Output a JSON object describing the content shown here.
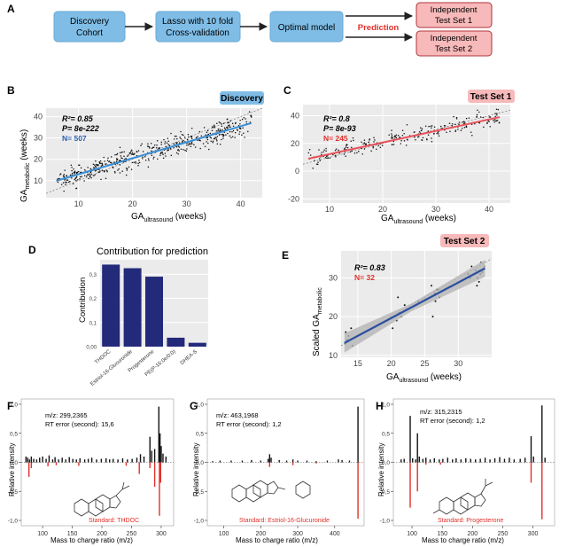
{
  "panels": {
    "A": "A",
    "B": "B",
    "C": "C",
    "D": "D",
    "E": "E",
    "F": "F",
    "G": "G",
    "H": "H"
  },
  "flow": {
    "box1": [
      "Discovery",
      "Cohort"
    ],
    "box2": [
      "Lasso with 10 fold",
      "Cross-validation"
    ],
    "box3": "Optimal model",
    "arrow_label": "Prediction",
    "test1": [
      "Independent",
      "Test Set 1"
    ],
    "test2": [
      "Independent",
      "Test Set 2"
    ]
  },
  "colors": {
    "blue_box": "#7fbde6",
    "red_box": "#f7b9b9",
    "line_blue": "#3a8fd6",
    "line_red": "#e8525a",
    "bar": "#232a7a",
    "spectrum_red": "#e0302a"
  },
  "chart_data": [
    {
      "id": "B",
      "type": "scatter",
      "badge": "Discovery",
      "stats": {
        "r2": "R²= 0.85",
        "p": "P= 8e-222",
        "n": "N= 507"
      },
      "xlabel_main": "GA",
      "xlabel_sub": "ultrasound",
      "xlabel_tail": " (weeks)",
      "ylabel_main": "GA",
      "ylabel_sub": "metabolic",
      "ylabel_tail": " (weeks)",
      "xlim": [
        4,
        44
      ],
      "ylim": [
        2,
        44
      ],
      "xticks": [
        10,
        20,
        30,
        40
      ],
      "yticks": [
        10,
        20,
        30,
        40
      ],
      "fit": {
        "x": [
          6,
          42
        ],
        "y": [
          10,
          37
        ]
      },
      "n_points": 507
    },
    {
      "id": "C",
      "type": "scatter",
      "badge": "Test Set 1",
      "stats": {
        "r2": "R²= 0.8",
        "p": "P= 8e-93",
        "n": "N= 245"
      },
      "xlabel_main": "GA",
      "xlabel_sub": "ultrasound",
      "xlabel_tail": " (weeks)",
      "xlim": [
        5,
        44
      ],
      "ylim": [
        -23,
        48
      ],
      "xticks": [
        10,
        20,
        30,
        40
      ],
      "yticks": [
        -20,
        0,
        20,
        40
      ],
      "fit": {
        "x": [
          6,
          42
        ],
        "y": [
          9,
          39
        ]
      },
      "n_points": 245
    },
    {
      "id": "D",
      "type": "bar",
      "title": "Contribution for prediction",
      "ylabel": "Contribution",
      "categories": [
        "THDOC",
        "Estriol-16-Glucuronide",
        "Progesterone",
        "PE(P-16:0e/0:0)",
        "DHEA-S"
      ],
      "values": [
        0.34,
        0.325,
        0.29,
        0.037,
        0.016
      ],
      "ylim": [
        0,
        0.36
      ],
      "yticks": [
        "0,00",
        "0,1",
        "0,2",
        "0,3"
      ]
    },
    {
      "id": "E",
      "type": "scatter",
      "badge": "Test Set 2",
      "stats": {
        "r2": "R²= 0.83",
        "n": "N= 32"
      },
      "xlabel_main": "GA",
      "xlabel_sub": "ultrasound",
      "xlabel_tail": " (weeks)",
      "ylabel_main": "Scaled GA",
      "ylabel_sub": "metabolic",
      "xlim": [
        12.5,
        35
      ],
      "ylim": [
        9.5,
        37
      ],
      "xticks": [
        15,
        20,
        25,
        30
      ],
      "yticks": [
        10,
        20,
        30
      ],
      "fit": {
        "x": [
          13,
          34
        ],
        "y": [
          13.2,
          32.5
        ]
      },
      "points": [
        [
          13.1,
          13
        ],
        [
          13.4,
          14
        ],
        [
          13.6,
          15
        ],
        [
          13.2,
          16
        ],
        [
          14,
          17
        ],
        [
          20.2,
          17
        ],
        [
          20.8,
          19
        ],
        [
          21.2,
          21
        ],
        [
          21,
          25
        ],
        [
          24,
          24
        ],
        [
          26,
          28
        ],
        [
          26.2,
          20
        ],
        [
          26.5,
          26
        ],
        [
          26.8,
          27
        ],
        [
          26.6,
          24
        ],
        [
          27,
          27
        ],
        [
          27.2,
          25
        ],
        [
          31.8,
          30
        ],
        [
          32,
          33
        ],
        [
          32.3,
          31
        ],
        [
          32.6,
          32
        ],
        [
          32.9,
          30
        ],
        [
          33.1,
          29
        ],
        [
          33.3,
          31
        ],
        [
          33.6,
          31.5
        ],
        [
          33.9,
          33
        ],
        [
          33.4,
          34
        ],
        [
          32.8,
          28
        ],
        [
          21.5,
          20
        ],
        [
          22,
          23
        ],
        [
          14.2,
          12.5
        ],
        [
          31.5,
          31
        ]
      ]
    },
    {
      "id": "F",
      "type": "spectrum",
      "info": [
        "m/z: 299,2365",
        "RT error (second): 15,6"
      ],
      "standard": "Standard: THDOC",
      "ylabel": "Relative intensity",
      "xlabel": "Mass to charge ratio (m/z)",
      "xlim": [
        70,
        315
      ],
      "xticks": [
        100,
        150,
        200,
        250,
        300
      ],
      "yticks": [
        "1,0",
        "0,5",
        "0,0",
        "-0,5",
        "-1,0"
      ],
      "pos": [
        [
          72,
          0.1
        ],
        [
          75,
          0.08
        ],
        [
          78,
          0.05
        ],
        [
          81,
          0.1
        ],
        [
          85,
          0.06
        ],
        [
          90,
          0.05
        ],
        [
          95,
          0.08
        ],
        [
          100,
          0.1
        ],
        [
          106,
          0.06
        ],
        [
          111,
          0.12
        ],
        [
          117,
          0.05
        ],
        [
          121,
          0.09
        ],
        [
          127,
          0.05
        ],
        [
          133,
          0.08
        ],
        [
          139,
          0.05
        ],
        [
          145,
          0.09
        ],
        [
          151,
          0.06
        ],
        [
          157,
          0.05
        ],
        [
          163,
          0.07
        ],
        [
          171,
          0.05
        ],
        [
          177,
          0.06
        ],
        [
          183,
          0.08
        ],
        [
          191,
          0.05
        ],
        [
          199,
          0.06
        ],
        [
          207,
          0.07
        ],
        [
          213,
          0.05
        ],
        [
          219,
          0.06
        ],
        [
          227,
          0.05
        ],
        [
          235,
          0.07
        ],
        [
          243,
          0.05
        ],
        [
          251,
          0.06
        ],
        [
          259,
          0.08
        ],
        [
          265,
          0.14
        ],
        [
          271,
          0.1
        ],
        [
          281,
          0.44
        ],
        [
          284,
          0.2
        ],
        [
          289,
          0.23
        ],
        [
          296,
          0.96
        ],
        [
          298,
          0.5
        ],
        [
          300,
          0.28
        ],
        [
          303,
          0.15
        ],
        [
          308,
          0.1
        ]
      ],
      "neg": [
        [
          77,
          -0.25
        ],
        [
          81,
          -0.1
        ],
        [
          109,
          -0.07
        ],
        [
          123,
          -0.05
        ],
        [
          161,
          -0.06
        ],
        [
          241,
          -0.06
        ],
        [
          263,
          -0.2
        ],
        [
          281,
          -0.1
        ],
        [
          289,
          -0.42
        ],
        [
          297,
          -0.92
        ],
        [
          299,
          -0.35
        ]
      ]
    },
    {
      "id": "G",
      "type": "spectrum",
      "info": [
        "m/z: 463,1968",
        "RT error (second): 1,2"
      ],
      "standard": "Standard: Estriol-16-Glucuronide",
      "ylabel": "Relative intensity",
      "xlabel": "Mass to charge ratio (m/z)",
      "xlim": [
        65,
        470
      ],
      "xticks": [
        100,
        200,
        300,
        400
      ],
      "yticks": [
        "1,0",
        "0,5",
        "0,0",
        "-0,5",
        "-1,0"
      ],
      "pos": [
        [
          70,
          0.02
        ],
        [
          90,
          0.03
        ],
        [
          120,
          0.03
        ],
        [
          150,
          0.03
        ],
        [
          175,
          0.04
        ],
        [
          200,
          0.03
        ],
        [
          220,
          0.06
        ],
        [
          224,
          0.14
        ],
        [
          228,
          0.08
        ],
        [
          250,
          0.04
        ],
        [
          270,
          0.03
        ],
        [
          287,
          0.05
        ],
        [
          300,
          0.03
        ],
        [
          325,
          0.03
        ],
        [
          350,
          0.02
        ],
        [
          380,
          0.03
        ],
        [
          410,
          0.05
        ],
        [
          420,
          0.04
        ],
        [
          440,
          0.03
        ],
        [
          463,
          0.96
        ]
      ],
      "neg": [
        [
          224,
          -0.08
        ],
        [
          287,
          -0.05
        ],
        [
          350,
          -0.02
        ],
        [
          463,
          -0.97
        ]
      ]
    },
    {
      "id": "H",
      "type": "spectrum",
      "info": [
        "m/z: 315,2315",
        "RT error (second): 1,2"
      ],
      "standard": "Standard: Progesterone",
      "ylabel": "Relative intensity",
      "xlabel": "Mass to charge ratio (m/z)",
      "xlim": [
        75,
        330
      ],
      "xticks": [
        100,
        150,
        200,
        250,
        300
      ],
      "yticks": [
        "1,0",
        "0,5",
        "0,0",
        "-0,5",
        "-1,0"
      ],
      "pos": [
        [
          82,
          0.05
        ],
        [
          87,
          0.06
        ],
        [
          97,
          0.8
        ],
        [
          101,
          0.07
        ],
        [
          106,
          0.05
        ],
        [
          109,
          0.5
        ],
        [
          112,
          0.1
        ],
        [
          118,
          0.06
        ],
        [
          123,
          0.08
        ],
        [
          130,
          0.05
        ],
        [
          137,
          0.07
        ],
        [
          145,
          0.05
        ],
        [
          151,
          0.06
        ],
        [
          159,
          0.08
        ],
        [
          167,
          0.05
        ],
        [
          173,
          0.07
        ],
        [
          181,
          0.05
        ],
        [
          189,
          0.07
        ],
        [
          197,
          0.06
        ],
        [
          205,
          0.05
        ],
        [
          213,
          0.06
        ],
        [
          221,
          0.08
        ],
        [
          229,
          0.05
        ],
        [
          237,
          0.07
        ],
        [
          245,
          0.09
        ],
        [
          253,
          0.06
        ],
        [
          261,
          0.08
        ],
        [
          269,
          0.05
        ],
        [
          279,
          0.06
        ],
        [
          287,
          0.08
        ],
        [
          297,
          0.45
        ],
        [
          301,
          0.1
        ],
        [
          315,
          0.98
        ],
        [
          320,
          0.08
        ]
      ],
      "neg": [
        [
          97,
          -0.78
        ],
        [
          109,
          -0.5
        ],
        [
          123,
          -0.04
        ],
        [
          147,
          -0.04
        ],
        [
          297,
          -0.35
        ],
        [
          315,
          -0.98
        ]
      ]
    }
  ]
}
